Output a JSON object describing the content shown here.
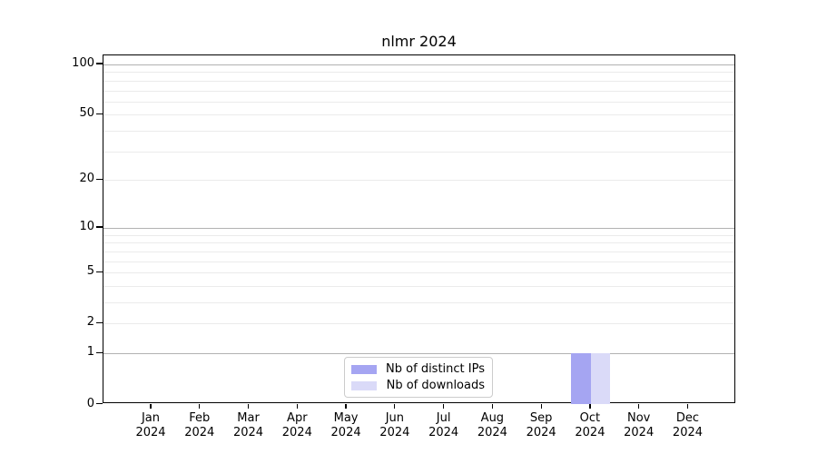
{
  "title": "nlmr 2024",
  "chart_data": {
    "type": "bar",
    "title": "nlmr 2024",
    "categories": [
      "Jan 2024",
      "Feb 2024",
      "Mar 2024",
      "Apr 2024",
      "May 2024",
      "Jun 2024",
      "Jul 2024",
      "Aug 2024",
      "Sep 2024",
      "Oct 2024",
      "Nov 2024",
      "Dec 2024"
    ],
    "month_names": [
      "Jan",
      "Feb",
      "Mar",
      "Apr",
      "May",
      "Jun",
      "Jul",
      "Aug",
      "Sep",
      "Oct",
      "Nov",
      "Dec"
    ],
    "year_label": "2024",
    "series": [
      {
        "name": "Nb of distinct IPs",
        "color": "#a5a5f2",
        "values": [
          0,
          0,
          0,
          0,
          0,
          0,
          0,
          0,
          0,
          1,
          0,
          0
        ]
      },
      {
        "name": "Nb of downloads",
        "color": "#dadaf8",
        "values": [
          0,
          0,
          0,
          0,
          0,
          0,
          0,
          0,
          0,
          1,
          0,
          0
        ]
      }
    ],
    "xlabel": "",
    "ylabel": "",
    "yscale": "log1p",
    "ylim": [
      0,
      113
    ],
    "y_labeled_ticks": [
      100,
      50,
      20,
      10,
      5,
      2,
      1,
      0
    ],
    "y_major_gridline_values": [
      100,
      10,
      1
    ],
    "y_minor_gridline_values": [
      90,
      80,
      70,
      60,
      50,
      40,
      30,
      20,
      9,
      8,
      7,
      6,
      5,
      4,
      3,
      2
    ],
    "grid": true,
    "legend_position": "lower center",
    "bar_group_width_ratio": 0.8
  },
  "legend": {
    "items": [
      {
        "label": "Nb of distinct IPs",
        "color": "#a5a5f2"
      },
      {
        "label": "Nb of downloads",
        "color": "#dadaf8"
      }
    ]
  },
  "colors": {
    "background": "#ffffff",
    "axis": "#000000",
    "grid_major": "#b2b2b2",
    "grid_minor": "#ebebeb",
    "distinct_ips": "#a5a5f2",
    "downloads": "#dadaf8"
  }
}
